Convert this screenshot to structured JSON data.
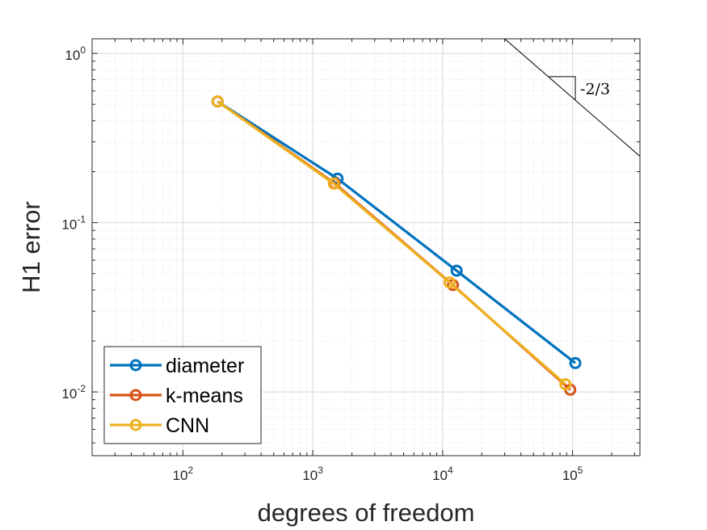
{
  "chart_data": {
    "type": "line",
    "scale": {
      "x": "log",
      "y": "log"
    },
    "xlabel": "degrees of freedom",
    "ylabel": "H1 error",
    "xlim": [
      20,
      330000
    ],
    "ylim": [
      0.0042,
      1.22
    ],
    "grid": true,
    "minor_grid": true,
    "x_ticks": [
      {
        "value": 100,
        "base": "10",
        "exp": "2"
      },
      {
        "value": 1000,
        "base": "10",
        "exp": "3"
      },
      {
        "value": 10000,
        "base": "10",
        "exp": "4"
      },
      {
        "value": 100000,
        "base": "10",
        "exp": "5"
      }
    ],
    "y_ticks": [
      {
        "value": 1,
        "base": "10",
        "exp": "0"
      },
      {
        "value": 0.1,
        "base": "10",
        "exp": "-1"
      },
      {
        "value": 0.01,
        "base": "10",
        "exp": "-2"
      }
    ],
    "legend_position": "bottom-left",
    "series": [
      {
        "name": "diameter",
        "color": "#0072BD",
        "x": [
          185,
          1550,
          12800,
          105000
        ],
        "y": [
          0.52,
          0.182,
          0.052,
          0.0148
        ]
      },
      {
        "name": "k-means",
        "color": "#D95319",
        "x": [
          185,
          1470,
          12000,
          96000
        ],
        "y": [
          0.52,
          0.171,
          0.0428,
          0.0103
        ]
      },
      {
        "name": "CNN",
        "color": "#EDB120",
        "x": [
          185,
          1450,
          11300,
          88000
        ],
        "y": [
          0.52,
          0.17,
          0.0443,
          0.0111
        ]
      }
    ],
    "slope_annotation": {
      "label": "-2/3",
      "slope": -0.6667,
      "line_x_range": [
        30000,
        330000
      ],
      "anchor_x": 30000,
      "anchor_y": 1.22,
      "triangle_x": [
        65000,
        105000
      ]
    }
  }
}
